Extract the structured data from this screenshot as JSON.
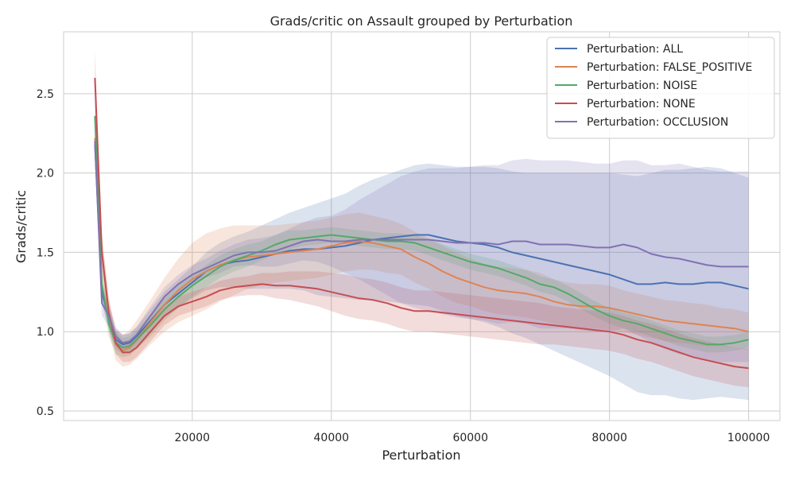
{
  "chart_data": {
    "type": "line",
    "title": "Grads/critic on Assault grouped by Perturbation",
    "xlabel": "Perturbation",
    "ylabel": "Grads/critic",
    "xlim": [
      1500,
      104500
    ],
    "ylim": [
      0.44,
      2.89
    ],
    "xticks": [
      20000,
      40000,
      60000,
      80000,
      100000
    ],
    "xtick_labels": [
      "20000",
      "40000",
      "60000",
      "80000",
      "100000"
    ],
    "yticks": [
      0.5,
      1.0,
      1.5,
      2.0,
      2.5
    ],
    "ytick_labels": [
      "0.5",
      "1.0",
      "1.5",
      "2.0",
      "2.5"
    ],
    "grid": true,
    "legend_position": "top-right",
    "series": [
      {
        "name": "Perturbation: ALL",
        "color": "#4c72b0",
        "x": [
          6000,
          7000,
          8000,
          9000,
          10000,
          11000,
          12000,
          14000,
          16000,
          18000,
          20000,
          22000,
          24000,
          26000,
          28000,
          30000,
          32000,
          34000,
          36000,
          38000,
          40000,
          42000,
          44000,
          46000,
          48000,
          50000,
          52000,
          54000,
          56000,
          58000,
          60000,
          62000,
          64000,
          66000,
          68000,
          70000,
          72000,
          74000,
          76000,
          78000,
          80000,
          82000,
          84000,
          86000,
          88000,
          90000,
          92000,
          94000,
          96000,
          98000,
          100000
        ],
        "y": [
          2.18,
          1.25,
          1.08,
          0.95,
          0.92,
          0.93,
          0.97,
          1.07,
          1.17,
          1.24,
          1.31,
          1.38,
          1.42,
          1.44,
          1.45,
          1.47,
          1.49,
          1.51,
          1.52,
          1.52,
          1.53,
          1.54,
          1.56,
          1.58,
          1.59,
          1.6,
          1.61,
          1.61,
          1.59,
          1.57,
          1.56,
          1.55,
          1.53,
          1.5,
          1.48,
          1.46,
          1.44,
          1.42,
          1.4,
          1.38,
          1.36,
          1.33,
          1.3,
          1.3,
          1.31,
          1.3,
          1.3,
          1.31,
          1.31,
          1.29,
          1.27
        ],
        "band": [
          0.06,
          0.07,
          0.07,
          0.06,
          0.06,
          0.06,
          0.06,
          0.07,
          0.08,
          0.09,
          0.1,
          0.12,
          0.14,
          0.16,
          0.18,
          0.2,
          0.22,
          0.24,
          0.26,
          0.29,
          0.31,
          0.33,
          0.36,
          0.38,
          0.4,
          0.42,
          0.44,
          0.45,
          0.46,
          0.47,
          0.48,
          0.49,
          0.5,
          0.51,
          0.52,
          0.54,
          0.56,
          0.58,
          0.6,
          0.62,
          0.64,
          0.66,
          0.68,
          0.7,
          0.71,
          0.72,
          0.73,
          0.73,
          0.72,
          0.71,
          0.7
        ]
      },
      {
        "name": "Perturbation: FALSE_POSITIVE",
        "color": "#dd8452",
        "x": [
          6000,
          7000,
          8000,
          9000,
          10000,
          11000,
          12000,
          14000,
          16000,
          18000,
          20000,
          22000,
          24000,
          26000,
          28000,
          30000,
          32000,
          34000,
          36000,
          38000,
          40000,
          42000,
          44000,
          46000,
          48000,
          50000,
          52000,
          54000,
          56000,
          58000,
          60000,
          62000,
          64000,
          66000,
          68000,
          70000,
          72000,
          74000,
          76000,
          78000,
          80000,
          82000,
          84000,
          86000,
          88000,
          90000,
          92000,
          94000,
          96000,
          98000,
          100000
        ],
        "y": [
          2.22,
          1.5,
          1.1,
          0.92,
          0.88,
          0.9,
          0.95,
          1.06,
          1.17,
          1.26,
          1.33,
          1.38,
          1.42,
          1.45,
          1.47,
          1.48,
          1.49,
          1.5,
          1.51,
          1.52,
          1.54,
          1.56,
          1.57,
          1.56,
          1.54,
          1.52,
          1.47,
          1.43,
          1.38,
          1.34,
          1.31,
          1.28,
          1.26,
          1.25,
          1.24,
          1.22,
          1.19,
          1.17,
          1.16,
          1.16,
          1.15,
          1.13,
          1.11,
          1.09,
          1.07,
          1.06,
          1.05,
          1.04,
          1.03,
          1.02,
          1.0
        ],
        "band": [
          0.08,
          0.09,
          0.1,
          0.1,
          0.1,
          0.11,
          0.12,
          0.14,
          0.17,
          0.2,
          0.23,
          0.24,
          0.23,
          0.22,
          0.2,
          0.19,
          0.18,
          0.18,
          0.18,
          0.18,
          0.18,
          0.18,
          0.18,
          0.17,
          0.17,
          0.16,
          0.16,
          0.16,
          0.16,
          0.16,
          0.15,
          0.15,
          0.15,
          0.15,
          0.15,
          0.15,
          0.14,
          0.14,
          0.14,
          0.14,
          0.14,
          0.13,
          0.13,
          0.13,
          0.13,
          0.13,
          0.13,
          0.13,
          0.12,
          0.12,
          0.12
        ]
      },
      {
        "name": "Perturbation: NOISE",
        "color": "#55a868",
        "x": [
          6000,
          7000,
          8000,
          9000,
          10000,
          11000,
          12000,
          14000,
          16000,
          18000,
          20000,
          22000,
          24000,
          26000,
          28000,
          30000,
          32000,
          34000,
          36000,
          38000,
          40000,
          42000,
          44000,
          46000,
          48000,
          50000,
          52000,
          54000,
          56000,
          58000,
          60000,
          62000,
          64000,
          66000,
          68000,
          70000,
          72000,
          74000,
          76000,
          78000,
          80000,
          82000,
          84000,
          86000,
          88000,
          90000,
          92000,
          94000,
          96000,
          98000,
          100000
        ],
        "y": [
          2.36,
          1.3,
          1.05,
          0.93,
          0.9,
          0.91,
          0.95,
          1.04,
          1.14,
          1.22,
          1.29,
          1.35,
          1.41,
          1.45,
          1.48,
          1.51,
          1.55,
          1.58,
          1.59,
          1.6,
          1.61,
          1.6,
          1.59,
          1.58,
          1.57,
          1.57,
          1.56,
          1.53,
          1.5,
          1.47,
          1.44,
          1.42,
          1.4,
          1.37,
          1.34,
          1.3,
          1.28,
          1.24,
          1.19,
          1.14,
          1.1,
          1.07,
          1.05,
          1.02,
          0.99,
          0.96,
          0.94,
          0.92,
          0.92,
          0.93,
          0.95
        ],
        "band": [
          0.08,
          0.08,
          0.08,
          0.07,
          0.06,
          0.06,
          0.06,
          0.07,
          0.07,
          0.07,
          0.07,
          0.07,
          0.07,
          0.07,
          0.07,
          0.06,
          0.06,
          0.06,
          0.05,
          0.05,
          0.05,
          0.05,
          0.05,
          0.05,
          0.05,
          0.05,
          0.05,
          0.05,
          0.05,
          0.05,
          0.05,
          0.05,
          0.05,
          0.05,
          0.05,
          0.05,
          0.05,
          0.05,
          0.05,
          0.05,
          0.05,
          0.05,
          0.05,
          0.05,
          0.05,
          0.05,
          0.05,
          0.05,
          0.05,
          0.05,
          0.05
        ]
      },
      {
        "name": "Perturbation: NONE",
        "color": "#c44e52",
        "x": [
          6000,
          7000,
          8000,
          9000,
          10000,
          11000,
          12000,
          14000,
          16000,
          18000,
          20000,
          22000,
          24000,
          26000,
          28000,
          30000,
          32000,
          34000,
          36000,
          38000,
          40000,
          42000,
          44000,
          46000,
          48000,
          50000,
          52000,
          54000,
          56000,
          58000,
          60000,
          62000,
          64000,
          66000,
          68000,
          70000,
          72000,
          74000,
          76000,
          78000,
          80000,
          82000,
          84000,
          86000,
          88000,
          90000,
          92000,
          94000,
          96000,
          98000,
          100000
        ],
        "y": [
          2.6,
          1.5,
          1.12,
          0.93,
          0.87,
          0.87,
          0.9,
          1.0,
          1.1,
          1.16,
          1.19,
          1.22,
          1.26,
          1.28,
          1.29,
          1.3,
          1.29,
          1.29,
          1.28,
          1.27,
          1.25,
          1.23,
          1.21,
          1.2,
          1.18,
          1.15,
          1.13,
          1.13,
          1.12,
          1.11,
          1.1,
          1.09,
          1.08,
          1.07,
          1.06,
          1.05,
          1.04,
          1.03,
          1.02,
          1.01,
          1.0,
          0.98,
          0.95,
          0.93,
          0.9,
          0.87,
          0.84,
          0.82,
          0.8,
          0.78,
          0.77
        ],
        "band": [
          0.18,
          0.12,
          0.09,
          0.07,
          0.06,
          0.06,
          0.06,
          0.06,
          0.06,
          0.06,
          0.06,
          0.06,
          0.06,
          0.06,
          0.06,
          0.07,
          0.08,
          0.09,
          0.1,
          0.11,
          0.12,
          0.13,
          0.13,
          0.13,
          0.13,
          0.13,
          0.13,
          0.13,
          0.13,
          0.13,
          0.13,
          0.13,
          0.13,
          0.13,
          0.13,
          0.13,
          0.12,
          0.12,
          0.12,
          0.12,
          0.12,
          0.12,
          0.12,
          0.12,
          0.12,
          0.12,
          0.12,
          0.12,
          0.12,
          0.12,
          0.12
        ]
      },
      {
        "name": "Perturbation: OCCLUSION",
        "color": "#8172b2",
        "x": [
          6000,
          7000,
          8000,
          9000,
          10000,
          11000,
          12000,
          14000,
          16000,
          18000,
          20000,
          22000,
          24000,
          26000,
          28000,
          30000,
          32000,
          34000,
          36000,
          38000,
          40000,
          42000,
          44000,
          46000,
          48000,
          50000,
          52000,
          54000,
          56000,
          58000,
          60000,
          62000,
          64000,
          66000,
          68000,
          70000,
          72000,
          74000,
          76000,
          78000,
          80000,
          82000,
          84000,
          86000,
          88000,
          90000,
          92000,
          94000,
          96000,
          98000,
          100000
        ],
        "y": [
          2.2,
          1.18,
          1.1,
          0.97,
          0.93,
          0.94,
          0.98,
          1.1,
          1.22,
          1.3,
          1.36,
          1.4,
          1.44,
          1.48,
          1.5,
          1.5,
          1.51,
          1.54,
          1.57,
          1.58,
          1.57,
          1.57,
          1.58,
          1.58,
          1.58,
          1.58,
          1.58,
          1.58,
          1.57,
          1.56,
          1.56,
          1.56,
          1.55,
          1.57,
          1.57,
          1.55,
          1.55,
          1.55,
          1.54,
          1.53,
          1.53,
          1.55,
          1.53,
          1.49,
          1.47,
          1.46,
          1.44,
          1.42,
          1.41,
          1.41,
          1.41
        ],
        "band": [
          0.08,
          0.08,
          0.07,
          0.06,
          0.05,
          0.05,
          0.05,
          0.06,
          0.06,
          0.06,
          0.06,
          0.06,
          0.07,
          0.07,
          0.08,
          0.09,
          0.1,
          0.11,
          0.12,
          0.14,
          0.16,
          0.2,
          0.25,
          0.3,
          0.35,
          0.4,
          0.43,
          0.45,
          0.46,
          0.47,
          0.48,
          0.49,
          0.5,
          0.51,
          0.52,
          0.53,
          0.53,
          0.53,
          0.53,
          0.53,
          0.53,
          0.53,
          0.55,
          0.56,
          0.58,
          0.6,
          0.6,
          0.6,
          0.6,
          0.6,
          0.6
        ]
      }
    ]
  }
}
